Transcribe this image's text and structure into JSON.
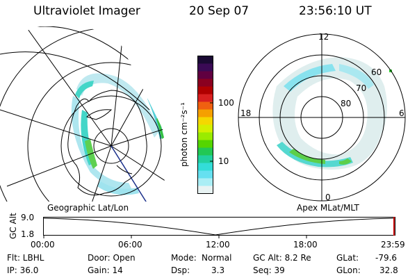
{
  "header": {
    "instrument": "Ultraviolet Imager",
    "date": "20 Sep 07",
    "time": "23:56:10 UT"
  },
  "colorbar": {
    "unit_label": "photon cm⁻²s⁻¹",
    "ticks": [
      "100",
      "10"
    ],
    "colors": [
      "#1a0a33",
      "#3a0a55",
      "#600040",
      "#8a0020",
      "#b00000",
      "#d82020",
      "#f06010",
      "#f5a000",
      "#f5d800",
      "#d4f000",
      "#9aeb00",
      "#55d500",
      "#22c855",
      "#22d0a0",
      "#33ddd8",
      "#66e0f0",
      "#aaeef5",
      "#e8f3f3"
    ]
  },
  "left_panel": {
    "caption": "Geographic Lat/Lon"
  },
  "right_panel": {
    "caption": "Apex  MLat/MLT",
    "mlt_labels": {
      "top": "12",
      "left": "18",
      "right": "6",
      "bottom": "0"
    },
    "lat_labels": [
      "60",
      "70",
      "80"
    ]
  },
  "timeline": {
    "ylabel": "GC Alt",
    "yticks": [
      "9.0",
      "1.8"
    ],
    "xticks": [
      "00:00",
      "06:00",
      "12:00",
      "18:00",
      "23:59"
    ],
    "colors": {
      "marker": "#cc0000"
    }
  },
  "status": {
    "filter": "Flt: LBHL",
    "door": "Door: Open",
    "mode_label": "Mode:",
    "mode_value": "Normal",
    "gc_alt": "GC Alt: 8.2 Re",
    "glat_label": "GLat:",
    "glat_value": "-79.6",
    "ip": "IP: 36.0",
    "gain": "Gain: 14",
    "dsp_label": "Dsp:",
    "dsp_value": "3.3",
    "seq": "Seq: 39",
    "glon_label": "GLon:",
    "glon_value": "32.8"
  }
}
